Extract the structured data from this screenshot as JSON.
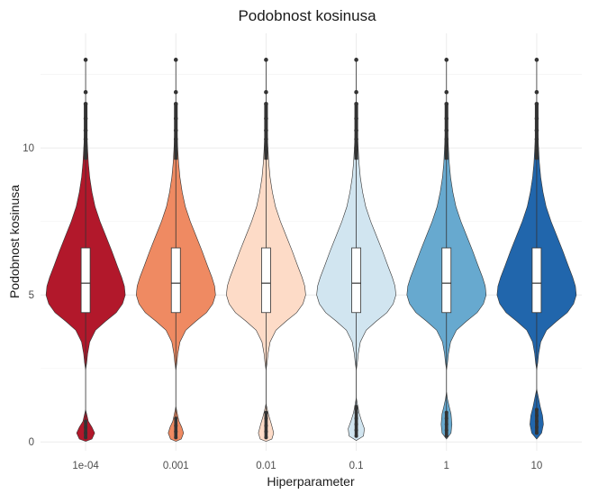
{
  "chart_data": {
    "type": "violin",
    "title": "Podobnost kosinusa",
    "xlabel": "Hiperparameter",
    "ylabel": "Podobnost kosinusa",
    "ylim": [
      -0.3,
      13.9
    ],
    "y_ticks": [
      0,
      5,
      10
    ],
    "grid": true,
    "legend": "none",
    "categories": [
      "1e-04",
      "0.001",
      "0.01",
      "0.1",
      "1",
      "10"
    ],
    "series": [
      {
        "category": "1e-04",
        "color": "#b2182b",
        "q1": 4.4,
        "median": 5.4,
        "q3": 6.6,
        "whisker_low": 2.6,
        "whisker_high": 9.6,
        "outliers_high": [
          10.0,
          10.3,
          10.6,
          11.0,
          11.5,
          11.9,
          13.0
        ],
        "outliers_low": [
          0.15,
          0.3,
          0.5,
          0.7
        ]
      },
      {
        "category": "0.001",
        "color": "#ef8a62",
        "q1": 4.4,
        "median": 5.4,
        "q3": 6.6,
        "whisker_low": 2.6,
        "whisker_high": 9.6,
        "outliers_high": [
          10.0,
          10.3,
          10.6,
          11.0,
          11.5,
          11.9,
          13.0
        ],
        "outliers_low": [
          0.15,
          0.35,
          0.55,
          0.8
        ]
      },
      {
        "category": "0.01",
        "color": "#fddbc7",
        "q1": 4.4,
        "median": 5.4,
        "q3": 6.6,
        "whisker_low": 2.6,
        "whisker_high": 9.6,
        "outliers_high": [
          10.0,
          10.3,
          10.6,
          11.0,
          11.5,
          11.9,
          13.0
        ],
        "outliers_low": [
          0.15,
          0.35,
          0.55,
          0.8,
          1.0
        ]
      },
      {
        "category": "0.1",
        "color": "#d1e5f0",
        "q1": 4.4,
        "median": 5.4,
        "q3": 6.6,
        "whisker_low": 2.6,
        "whisker_high": 9.6,
        "outliers_high": [
          10.0,
          10.3,
          10.6,
          11.0,
          11.5,
          11.9,
          13.0
        ],
        "outliers_low": [
          0.2,
          0.4,
          0.6,
          0.8,
          1.0,
          1.2
        ]
      },
      {
        "category": "1",
        "color": "#67a9cf",
        "q1": 4.4,
        "median": 5.4,
        "q3": 6.6,
        "whisker_low": 2.6,
        "whisker_high": 9.6,
        "outliers_high": [
          10.0,
          10.3,
          10.6,
          11.0,
          11.5,
          11.9,
          13.0
        ],
        "outliers_low": [
          0.2,
          0.4,
          0.6,
          0.8,
          1.0
        ]
      },
      {
        "category": "10",
        "color": "#2166ac",
        "q1": 4.4,
        "median": 5.4,
        "q3": 6.6,
        "whisker_low": 2.6,
        "whisker_high": 9.6,
        "outliers_high": [
          10.0,
          10.3,
          10.6,
          11.0,
          11.5,
          11.9,
          13.0
        ],
        "outliers_low": [
          0.3,
          0.5,
          0.7,
          0.9,
          1.1
        ]
      }
    ]
  }
}
